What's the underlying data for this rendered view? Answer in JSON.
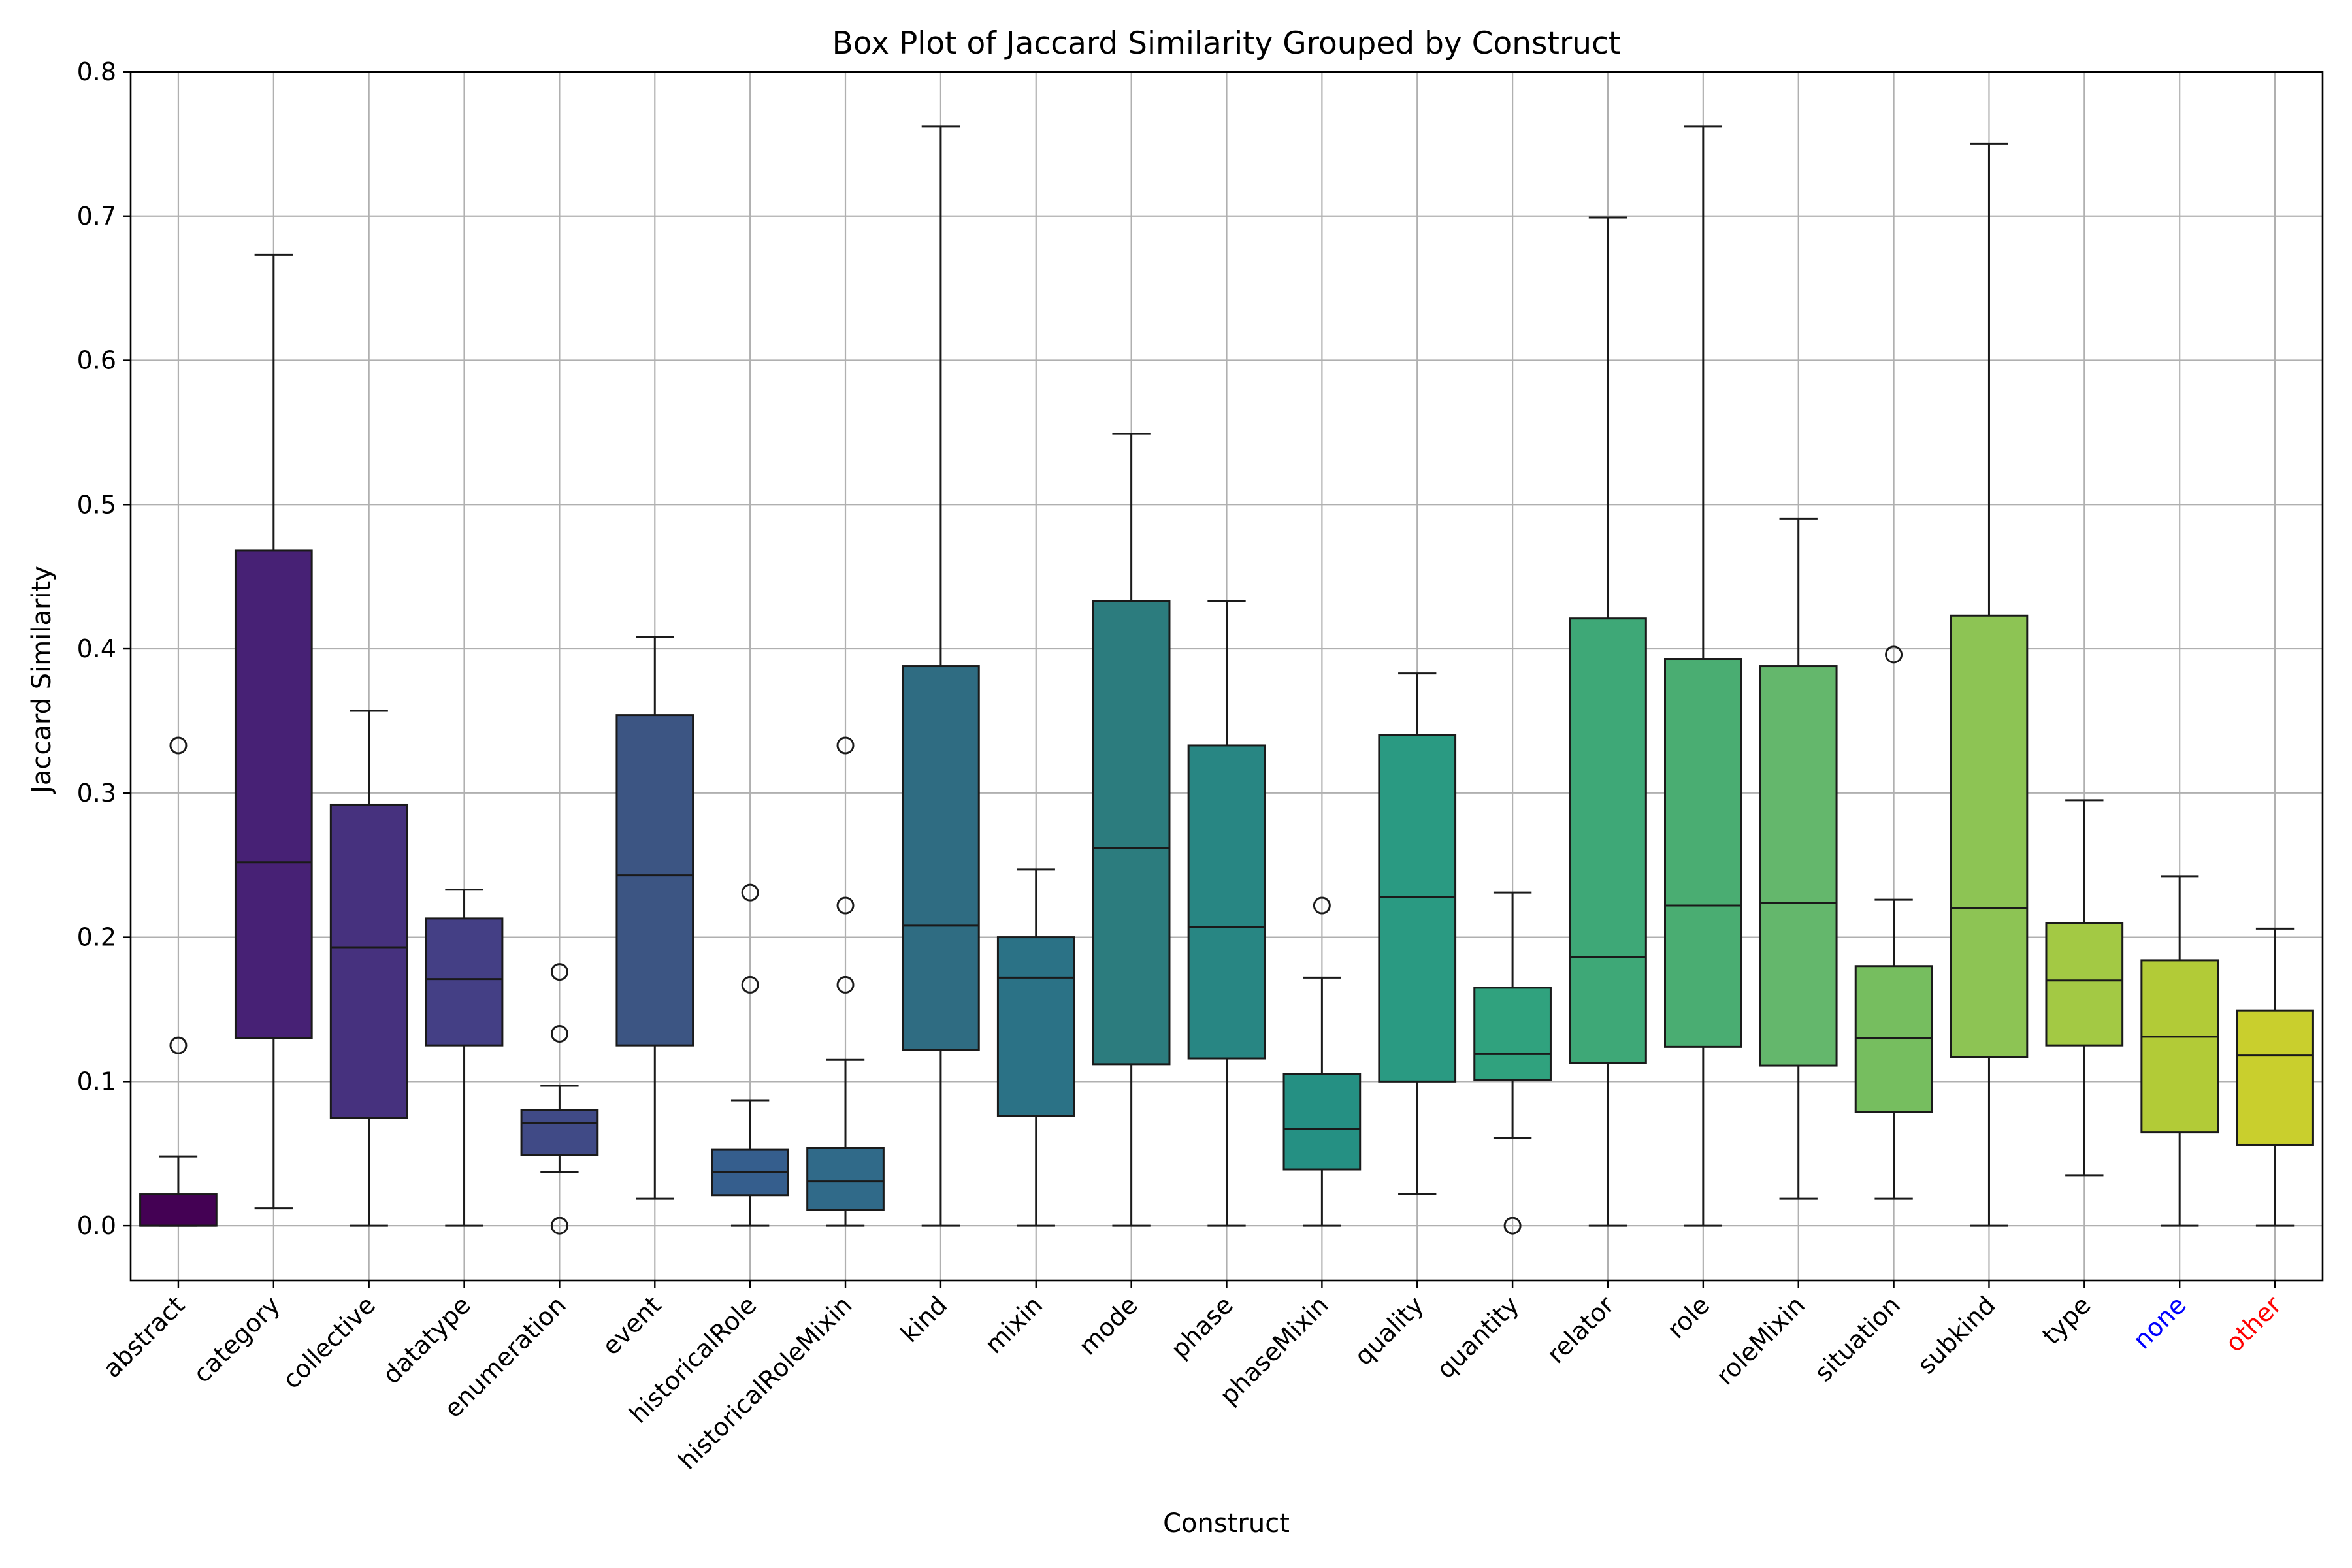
{
  "chart_data": {
    "type": "box",
    "title": "Box Plot of Jaccard Similarity Grouped by Construct",
    "xlabel": "Construct",
    "ylabel": "Jaccard Similarity",
    "ylim": [
      -0.038,
      0.8
    ],
    "yticks": [
      0.0,
      0.1,
      0.2,
      0.3,
      0.4,
      0.5,
      0.6,
      0.7,
      0.8
    ],
    "ytick_labels": [
      "0.0",
      "0.1",
      "0.2",
      "0.3",
      "0.4",
      "0.5",
      "0.6",
      "0.7",
      "0.8"
    ],
    "grid": true,
    "categories": [
      {
        "label": "abstract",
        "color": "#440154",
        "label_color": "#000000",
        "whislo": 0.0,
        "q1": 0.0,
        "med": 0.0,
        "q3": 0.022,
        "whishi": 0.048,
        "fliers": [
          0.125,
          0.333
        ]
      },
      {
        "label": "category",
        "color": "#472175",
        "label_color": "#000000",
        "whislo": 0.012,
        "q1": 0.13,
        "med": 0.252,
        "q3": 0.468,
        "whishi": 0.673,
        "fliers": []
      },
      {
        "label": "collective",
        "color": "#46317e",
        "label_color": "#000000",
        "whislo": 0.0,
        "q1": 0.075,
        "med": 0.193,
        "q3": 0.292,
        "whishi": 0.357,
        "fliers": []
      },
      {
        "label": "datatype",
        "color": "#443f85",
        "label_color": "#000000",
        "whislo": 0.0,
        "q1": 0.125,
        "med": 0.171,
        "q3": 0.213,
        "whishi": 0.233,
        "fliers": []
      },
      {
        "label": "enumeration",
        "color": "#404a86",
        "label_color": "#000000",
        "whislo": 0.037,
        "q1": 0.049,
        "med": 0.071,
        "q3": 0.08,
        "whishi": 0.097,
        "fliers": [
          0.0,
          0.133,
          0.176
        ]
      },
      {
        "label": "event",
        "color": "#3c5583",
        "label_color": "#000000",
        "whislo": 0.019,
        "q1": 0.125,
        "med": 0.243,
        "q3": 0.354,
        "whishi": 0.408,
        "fliers": []
      },
      {
        "label": "historicalRole",
        "color": "#355e8d",
        "label_color": "#000000",
        "whislo": 0.0,
        "q1": 0.021,
        "med": 0.037,
        "q3": 0.053,
        "whishi": 0.087,
        "fliers": [
          0.167,
          0.231
        ]
      },
      {
        "label": "historicalRoleMixin",
        "color": "#306a89",
        "label_color": "#000000",
        "whislo": 0.0,
        "q1": 0.011,
        "med": 0.031,
        "q3": 0.054,
        "whishi": 0.115,
        "fliers": [
          0.167,
          0.222,
          0.333
        ]
      },
      {
        "label": "kind",
        "color": "#2f6c82",
        "label_color": "#000000",
        "whislo": 0.0,
        "q1": 0.122,
        "med": 0.208,
        "q3": 0.388,
        "whishi": 0.762,
        "fliers": []
      },
      {
        "label": "mixin",
        "color": "#2b7286",
        "label_color": "#000000",
        "whislo": 0.0,
        "q1": 0.076,
        "med": 0.172,
        "q3": 0.2,
        "whishi": 0.247,
        "fliers": []
      },
      {
        "label": "mode",
        "color": "#2c7c7e",
        "label_color": "#000000",
        "whislo": 0.0,
        "q1": 0.112,
        "med": 0.262,
        "q3": 0.433,
        "whishi": 0.549,
        "fliers": []
      },
      {
        "label": "phase",
        "color": "#288683",
        "label_color": "#000000",
        "whislo": 0.0,
        "q1": 0.116,
        "med": 0.207,
        "q3": 0.333,
        "whishi": 0.433,
        "fliers": []
      },
      {
        "label": "phaseMixin",
        "color": "#259083",
        "label_color": "#000000",
        "whislo": 0.0,
        "q1": 0.039,
        "med": 0.067,
        "q3": 0.105,
        "whishi": 0.172,
        "fliers": [
          0.222
        ]
      },
      {
        "label": "quality",
        "color": "#2a9a82",
        "label_color": "#000000",
        "whislo": 0.022,
        "q1": 0.1,
        "med": 0.228,
        "q3": 0.34,
        "whishi": 0.383,
        "fliers": []
      },
      {
        "label": "quantity",
        "color": "#30a27e",
        "label_color": "#000000",
        "whislo": 0.061,
        "q1": 0.101,
        "med": 0.119,
        "q3": 0.165,
        "whishi": 0.231,
        "fliers": [
          0.0
        ]
      },
      {
        "label": "relator",
        "color": "#3ea877",
        "label_color": "#000000",
        "whislo": 0.0,
        "q1": 0.113,
        "med": 0.186,
        "q3": 0.421,
        "whishi": 0.699,
        "fliers": []
      },
      {
        "label": "role",
        "color": "#4aad72",
        "label_color": "#000000",
        "whislo": 0.0,
        "q1": 0.124,
        "med": 0.222,
        "q3": 0.393,
        "whishi": 0.762,
        "fliers": []
      },
      {
        "label": "roleMixin",
        "color": "#64b76c",
        "label_color": "#000000",
        "whislo": 0.019,
        "q1": 0.111,
        "med": 0.224,
        "q3": 0.388,
        "whishi": 0.49,
        "fliers": []
      },
      {
        "label": "situation",
        "color": "#76be5f",
        "label_color": "#000000",
        "whislo": 0.019,
        "q1": 0.079,
        "med": 0.13,
        "q3": 0.18,
        "whishi": 0.226,
        "fliers": [
          0.396
        ]
      },
      {
        "label": "subkind",
        "color": "#8dc454",
        "label_color": "#000000",
        "whislo": 0.0,
        "q1": 0.117,
        "med": 0.22,
        "q3": 0.423,
        "whishi": 0.75,
        "fliers": []
      },
      {
        "label": "type",
        "color": "#a3c944",
        "label_color": "#000000",
        "whislo": 0.035,
        "q1": 0.125,
        "med": 0.17,
        "q3": 0.21,
        "whishi": 0.295,
        "fliers": []
      },
      {
        "label": "none",
        "color": "#b2cb37",
        "label_color": "#0000ff",
        "whislo": 0.0,
        "q1": 0.065,
        "med": 0.131,
        "q3": 0.184,
        "whishi": 0.242,
        "fliers": []
      },
      {
        "label": "other",
        "color": "#c9cf2d",
        "label_color": "#ff0000",
        "whislo": 0.0,
        "q1": 0.056,
        "med": 0.118,
        "q3": 0.149,
        "whishi": 0.206,
        "fliers": []
      }
    ]
  }
}
